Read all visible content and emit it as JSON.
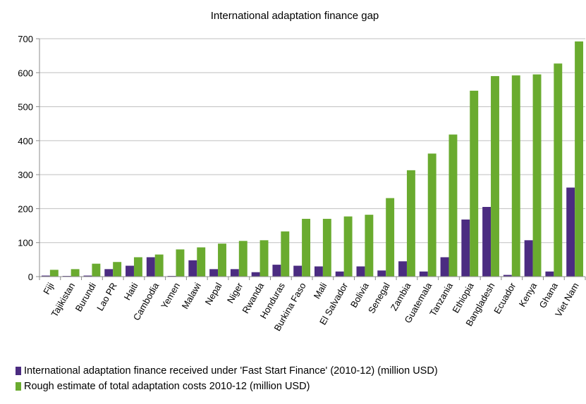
{
  "chart_data": {
    "type": "bar",
    "title": "International adaptation finance gap",
    "xlabel": "",
    "ylabel": "",
    "ylim": [
      0,
      700
    ],
    "yticks": [
      0,
      100,
      200,
      300,
      400,
      500,
      600,
      700
    ],
    "grid": true,
    "legend_position": "bottom",
    "categories": [
      "Fiji",
      "Tajikistan",
      "Burundi",
      "Lao PR",
      "Haiti",
      "Cambodia",
      "Yemen",
      "Malawi",
      "Nepal",
      "Niger",
      "Rwanda",
      "Honduras",
      "Burkina Faso",
      "Mali",
      "El Salvador",
      "Bolivia",
      "Senegal",
      "Zambia",
      "Guatemala",
      "Tanzania",
      "Ethiopia",
      "Bangladesh",
      "Ecuador",
      "Kenya",
      "Ghana",
      "Viet Nam"
    ],
    "series": [
      {
        "name": "International adaptation finance received under 'Fast Start Finance' (2010-12) (million USD)",
        "color": "#4b2c81",
        "values": [
          3,
          2,
          3,
          22,
          32,
          57,
          2,
          48,
          22,
          22,
          13,
          35,
          32,
          30,
          15,
          30,
          18,
          45,
          15,
          57,
          168,
          205,
          5,
          107,
          15,
          262
        ]
      },
      {
        "name": "Rough estimate of total adaptation costs 2010-12 (million USD)",
        "color": "#6aab2f",
        "values": [
          20,
          22,
          38,
          43,
          57,
          65,
          80,
          86,
          97,
          105,
          107,
          133,
          170,
          170,
          177,
          182,
          231,
          313,
          362,
          418,
          547,
          590,
          592,
          595,
          627,
          692
        ]
      }
    ]
  }
}
